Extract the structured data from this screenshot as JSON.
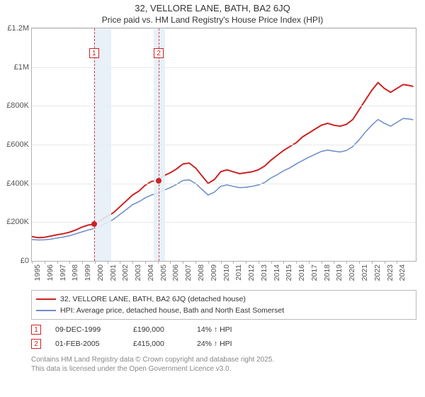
{
  "title_line1": "32, VELLORE LANE, BATH, BA2 6JQ",
  "title_line2": "Price paid vs. HM Land Registry's House Price Index (HPI)",
  "chart": {
    "type": "line",
    "background_color": "#ffffff",
    "grid_color": "#e8e8e8",
    "axis_color": "#b0b0b0",
    "band_color": "#e6eef7",
    "ref_line_color": "#d94a4a",
    "x_start_year": 1995,
    "x_end_year": 2025.5,
    "x_years": [
      1995,
      1996,
      1997,
      1998,
      1999,
      2000,
      2001,
      2002,
      2003,
      2004,
      2005,
      2006,
      2007,
      2008,
      2009,
      2010,
      2011,
      2012,
      2013,
      2014,
      2015,
      2016,
      2017,
      2018,
      2019,
      2020,
      2021,
      2022,
      2023,
      2024
    ],
    "ylim": [
      0,
      1200000
    ],
    "ytick_step": 200000,
    "ylabels": [
      "£0",
      "£200K",
      "£400K",
      "£600K",
      "£800K",
      "£1M",
      "£1.2M"
    ],
    "label_fontsize": 11,
    "bands": [
      {
        "from": 1999.9,
        "to": 2001.3
      },
      {
        "from": 2004.7,
        "to": 2005.6
      }
    ],
    "ref_lines": [
      {
        "x": 1999.94,
        "label": "1"
      },
      {
        "x": 2005.08,
        "label": "2"
      }
    ],
    "sale_points": [
      {
        "x": 1999.94,
        "y": 190000,
        "color": "#cc2222"
      },
      {
        "x": 2005.08,
        "y": 415000,
        "color": "#cc2222"
      }
    ],
    "series": [
      {
        "name": "price_paid",
        "label": "32, VELLORE LANE, BATH, BA2 6JQ (detached house)",
        "color": "#cc2222",
        "line_width": 2,
        "x": [
          1995.0,
          1995.5,
          1996.0,
          1996.5,
          1997.0,
          1997.5,
          1998.0,
          1998.5,
          1999.0,
          1999.5,
          2000.0,
          2000.5,
          2001.0,
          2001.5,
          2002.0,
          2002.5,
          2003.0,
          2003.5,
          2004.0,
          2004.5,
          2005.0,
          2005.5,
          2006.0,
          2006.5,
          2007.0,
          2007.5,
          2008.0,
          2008.5,
          2009.0,
          2009.5,
          2010.0,
          2010.5,
          2011.0,
          2011.5,
          2012.0,
          2012.5,
          2013.0,
          2013.5,
          2014.0,
          2014.5,
          2015.0,
          2015.5,
          2016.0,
          2016.5,
          2017.0,
          2017.5,
          2018.0,
          2018.5,
          2019.0,
          2019.5,
          2020.0,
          2020.5,
          2021.0,
          2021.5,
          2022.0,
          2022.5,
          2023.0,
          2023.5,
          2024.0,
          2024.5,
          2025.0,
          2025.3
        ],
        "y": [
          125000,
          120000,
          122000,
          128000,
          135000,
          140000,
          148000,
          160000,
          175000,
          185000,
          190000,
          210000,
          230000,
          250000,
          280000,
          310000,
          340000,
          360000,
          390000,
          410000,
          415000,
          440000,
          455000,
          475000,
          500000,
          505000,
          480000,
          440000,
          400000,
          420000,
          460000,
          470000,
          460000,
          450000,
          455000,
          460000,
          470000,
          490000,
          520000,
          545000,
          570000,
          590000,
          610000,
          640000,
          660000,
          680000,
          700000,
          710000,
          700000,
          695000,
          705000,
          730000,
          780000,
          830000,
          880000,
          920000,
          890000,
          870000,
          890000,
          910000,
          905000,
          900000
        ]
      },
      {
        "name": "hpi",
        "label": "HPI: Average price, detached house, Bath and North East Somerset",
        "color": "#6a8cc7",
        "line_width": 1.5,
        "x": [
          1995.0,
          1995.5,
          1996.0,
          1996.5,
          1997.0,
          1997.5,
          1998.0,
          1998.5,
          1999.0,
          1999.5,
          2000.0,
          2000.5,
          2001.0,
          2001.5,
          2002.0,
          2002.5,
          2003.0,
          2003.5,
          2004.0,
          2004.5,
          2005.0,
          2005.5,
          2006.0,
          2006.5,
          2007.0,
          2007.5,
          2008.0,
          2008.5,
          2009.0,
          2009.5,
          2010.0,
          2010.5,
          2011.0,
          2011.5,
          2012.0,
          2012.5,
          2013.0,
          2013.5,
          2014.0,
          2014.5,
          2015.0,
          2015.5,
          2016.0,
          2016.5,
          2017.0,
          2017.5,
          2018.0,
          2018.5,
          2019.0,
          2019.5,
          2020.0,
          2020.5,
          2021.0,
          2021.5,
          2022.0,
          2022.5,
          2023.0,
          2023.5,
          2024.0,
          2024.5,
          2025.0,
          2025.3
        ],
        "y": [
          110000,
          108000,
          109000,
          112000,
          118000,
          123000,
          130000,
          140000,
          150000,
          160000,
          168000,
          182000,
          198000,
          215000,
          240000,
          265000,
          290000,
          305000,
          325000,
          340000,
          350000,
          365000,
          378000,
          395000,
          415000,
          418000,
          400000,
          370000,
          340000,
          355000,
          385000,
          392000,
          385000,
          378000,
          380000,
          385000,
          392000,
          405000,
          428000,
          445000,
          465000,
          480000,
          500000,
          518000,
          535000,
          550000,
          565000,
          572000,
          566000,
          562000,
          570000,
          590000,
          625000,
          665000,
          700000,
          730000,
          710000,
          695000,
          715000,
          735000,
          732000,
          728000
        ]
      }
    ]
  },
  "sales": [
    {
      "ref": "1",
      "date": "09-DEC-1999",
      "price": "£190,000",
      "delta": "14% ↑ HPI"
    },
    {
      "ref": "2",
      "date": "01-FEB-2005",
      "price": "£415,000",
      "delta": "24% ↑ HPI"
    }
  ],
  "footer_line1": "Contains HM Land Registry data © Crown copyright and database right 2025.",
  "footer_line2": "This data is licensed under the Open Government Licence v3.0."
}
